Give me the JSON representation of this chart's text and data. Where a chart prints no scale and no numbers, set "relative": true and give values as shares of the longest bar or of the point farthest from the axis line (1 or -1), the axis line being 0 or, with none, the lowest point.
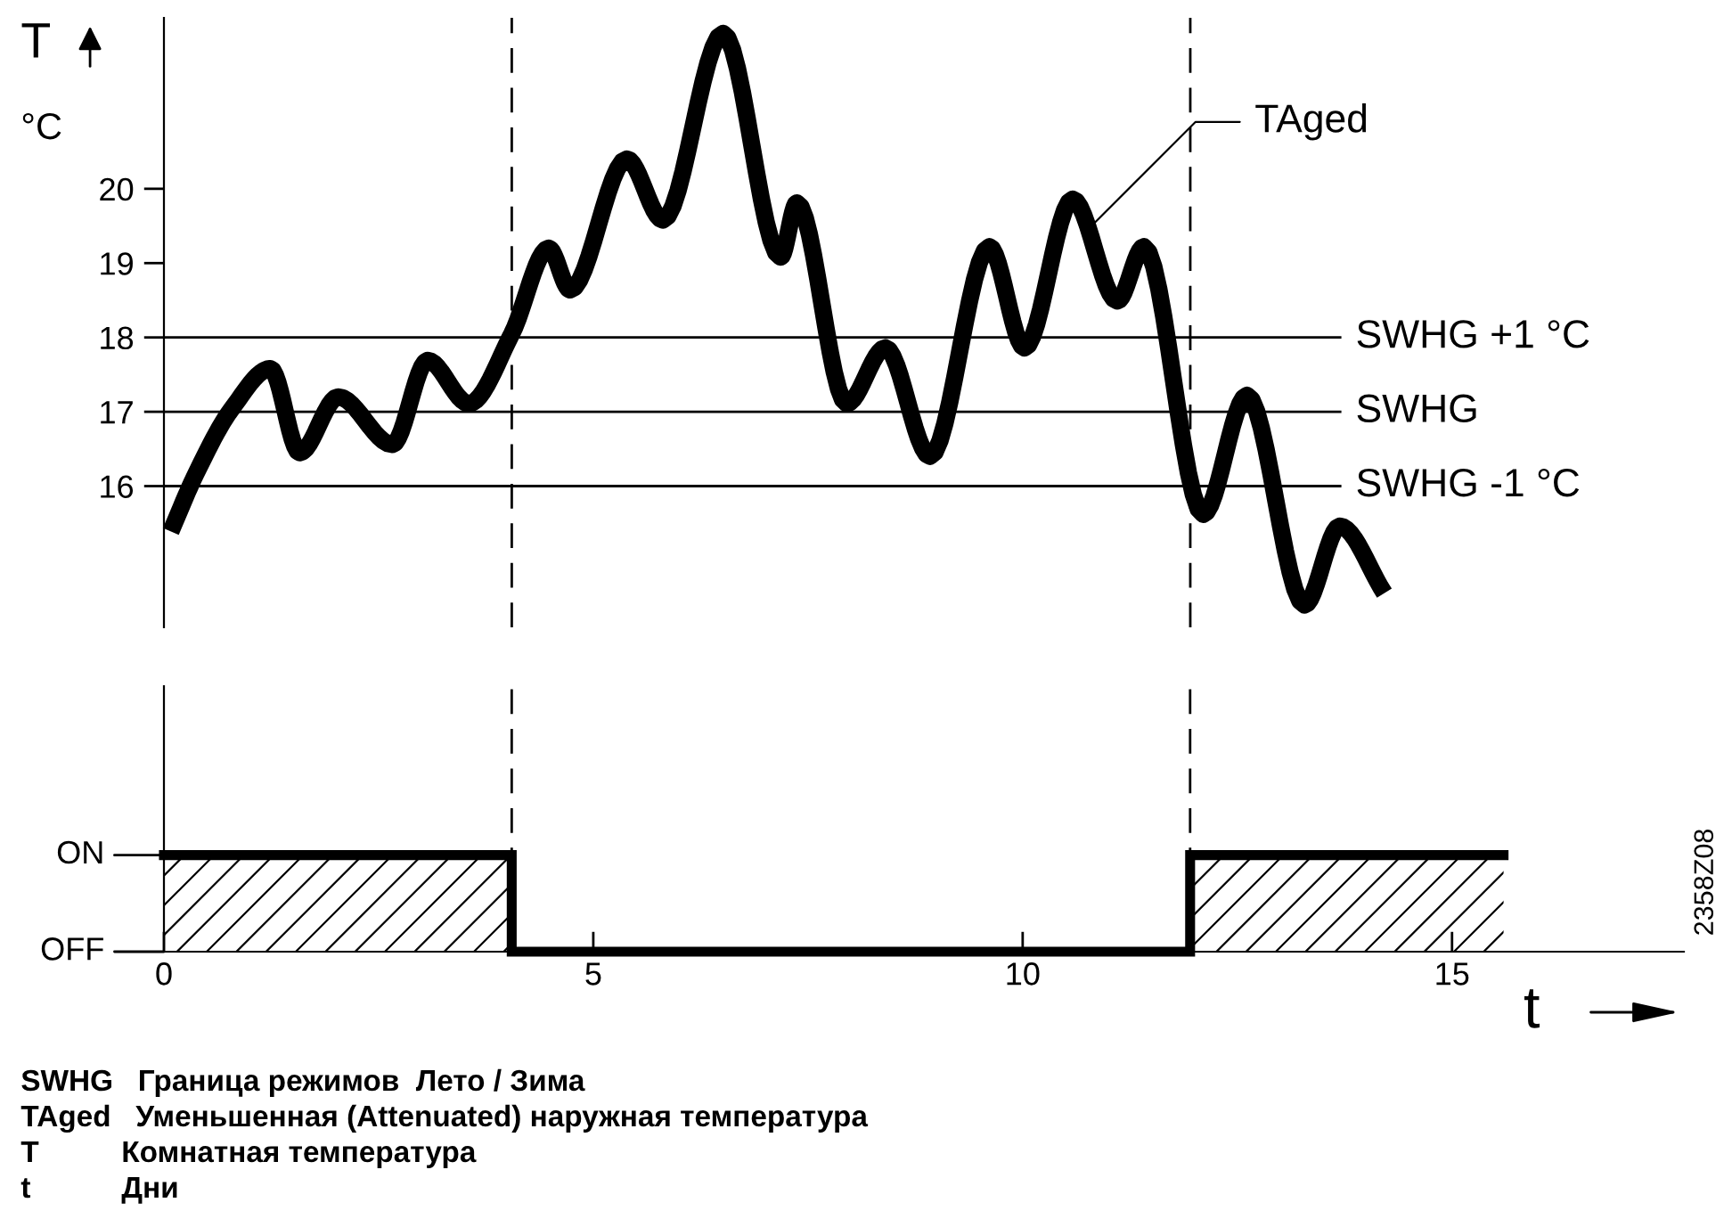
{
  "chart_data": [
    {
      "type": "line",
      "ylabel": "T",
      "tick_labels": "y",
      "grid": false,
      "line_style": "solid",
      "marker": "none",
      "xlim": [
        0,
        15
      ],
      "xticks": [
        0,
        5,
        10,
        15
      ],
      "ylim": [
        14.1,
        22.3
      ],
      "yticks": [
        16,
        17,
        18,
        19,
        20
      ],
      "series": [
        {
          "color": "#000000",
          "x": [
            0.08,
            0.37,
            0.79,
            1.24,
            1.58,
            2.03,
            2.66,
            3.07,
            3.55,
            4.05,
            4.48,
            4.73,
            5.39,
            5.81,
            6.51,
            7.18,
            7.37,
            7.95,
            8.4,
            8.92,
            9.61,
            10.02,
            10.58,
            11.1,
            11.41,
            12.1,
            12.61,
            13.28,
            13.69,
            14.21
          ],
          "values": [
            15.39,
            16.16,
            17.04,
            17.58,
            16.45,
            17.2,
            16.56,
            17.69,
            17.11,
            18.05,
            19.2,
            18.64,
            20.4,
            19.58,
            22.09,
            19.08,
            19.81,
            17.11,
            17.86,
            16.4,
            19.22,
            17.86,
            19.86,
            18.49,
            19.22,
            15.62,
            17.22,
            14.4,
            15.46,
            14.56
          ]
        }
      ],
      "ref_lines": [
        {
          "axis": "y",
          "value": 18,
          "label": "SWHG +1 °C",
          "color": "#000000",
          "line_style": "solid"
        },
        {
          "axis": "y",
          "value": 17,
          "label": "SWHG",
          "color": "#000000",
          "line_style": "solid"
        },
        {
          "axis": "y",
          "value": 16,
          "label": "SWHG -1 °C",
          "color": "#000000",
          "line_style": "solid"
        },
        {
          "axis": "x",
          "value": 4.05,
          "color": "#000000",
          "line_style": "dashed"
        },
        {
          "axis": "x",
          "value": 11.95,
          "color": "#000000",
          "line_style": "dashed"
        }
      ],
      "annotations": [
        {
          "text": "TAged",
          "x": 10.8,
          "y": 19.5
        },
        "°C",
        "SWHG   Граница режимов  Лето / Зима",
        "TAged   Уменьшенная (Attenuated) наружная температура",
        "T          Комнатная температура",
        "t           Дни"
      ]
    },
    {
      "type": "step",
      "xlabel": "t",
      "grid": false,
      "relative": true,
      "xlim": [
        0,
        17.7
      ],
      "xticks": [
        0,
        5,
        10,
        15
      ],
      "series": [
        {
          "color": "#000000",
          "x": [
            0,
            4.05,
            11.95,
            15.6
          ],
          "values": [
            1,
            0,
            1,
            1
          ]
        }
      ],
      "ref_lines": [
        {
          "axis": "x",
          "value": 4.05,
          "color": "#000000",
          "line_style": "dashed"
        },
        {
          "axis": "x",
          "value": 11.95,
          "color": "#000000",
          "line_style": "dashed"
        }
      ],
      "bands": [
        {
          "axis": "x",
          "from": 0,
          "to": 4.05
        },
        {
          "axis": "x",
          "from": 11.95,
          "to": 15.6
        }
      ],
      "annotations": [
        "ON",
        "OFF",
        "2358Z08"
      ]
    }
  ]
}
